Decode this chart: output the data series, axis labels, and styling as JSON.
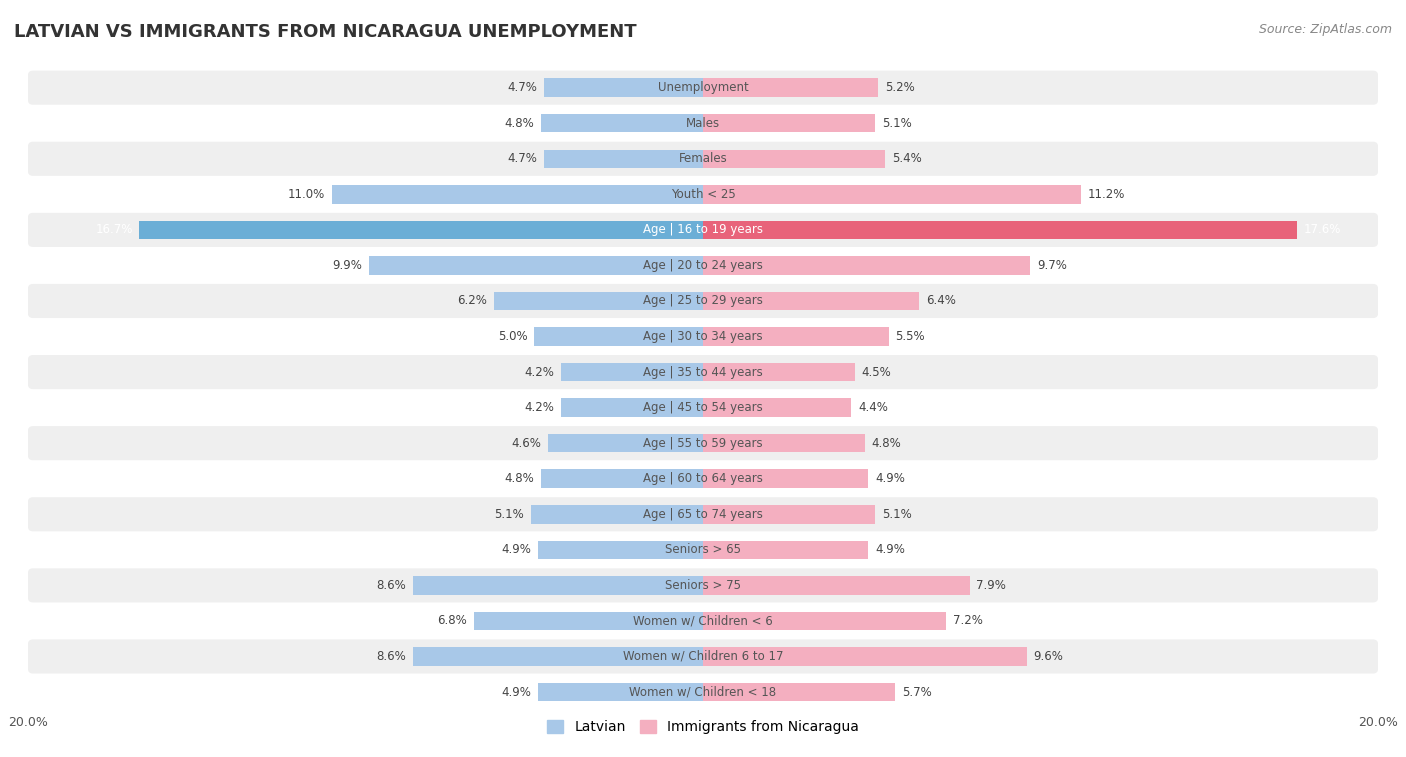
{
  "title": "Latvian vs Immigrants from Nicaragua Unemployment",
  "source": "Source: ZipAtlas.com",
  "categories": [
    "Unemployment",
    "Males",
    "Females",
    "Youth < 25",
    "Age | 16 to 19 years",
    "Age | 20 to 24 years",
    "Age | 25 to 29 years",
    "Age | 30 to 34 years",
    "Age | 35 to 44 years",
    "Age | 45 to 54 years",
    "Age | 55 to 59 years",
    "Age | 60 to 64 years",
    "Age | 65 to 74 years",
    "Seniors > 65",
    "Seniors > 75",
    "Women w/ Children < 6",
    "Women w/ Children 6 to 17",
    "Women w/ Children < 18"
  ],
  "latvian": [
    4.7,
    4.8,
    4.7,
    11.0,
    16.7,
    9.9,
    6.2,
    5.0,
    4.2,
    4.2,
    4.6,
    4.8,
    5.1,
    4.9,
    8.6,
    6.8,
    8.6,
    4.9
  ],
  "nicaragua": [
    5.2,
    5.1,
    5.4,
    11.2,
    17.6,
    9.7,
    6.4,
    5.5,
    4.5,
    4.4,
    4.8,
    4.9,
    5.1,
    4.9,
    7.9,
    7.2,
    9.6,
    5.7
  ],
  "latvian_color_normal": "#a8c8e8",
  "latvian_color_highlight": "#6baed6",
  "nicaragua_color_normal": "#f4afc0",
  "nicaragua_color_highlight": "#e8637a",
  "row_color_odd": "#ffffff",
  "row_color_even": "#efefef",
  "highlight_row": 4,
  "bg_color": "#ffffff",
  "xlim": 20.0,
  "legend_latvian": "Latvian",
  "legend_nicaragua": "Immigrants from Nicaragua",
  "title_fontsize": 13,
  "source_fontsize": 9,
  "label_fontsize": 8.5,
  "value_fontsize": 8.5,
  "legend_fontsize": 10
}
